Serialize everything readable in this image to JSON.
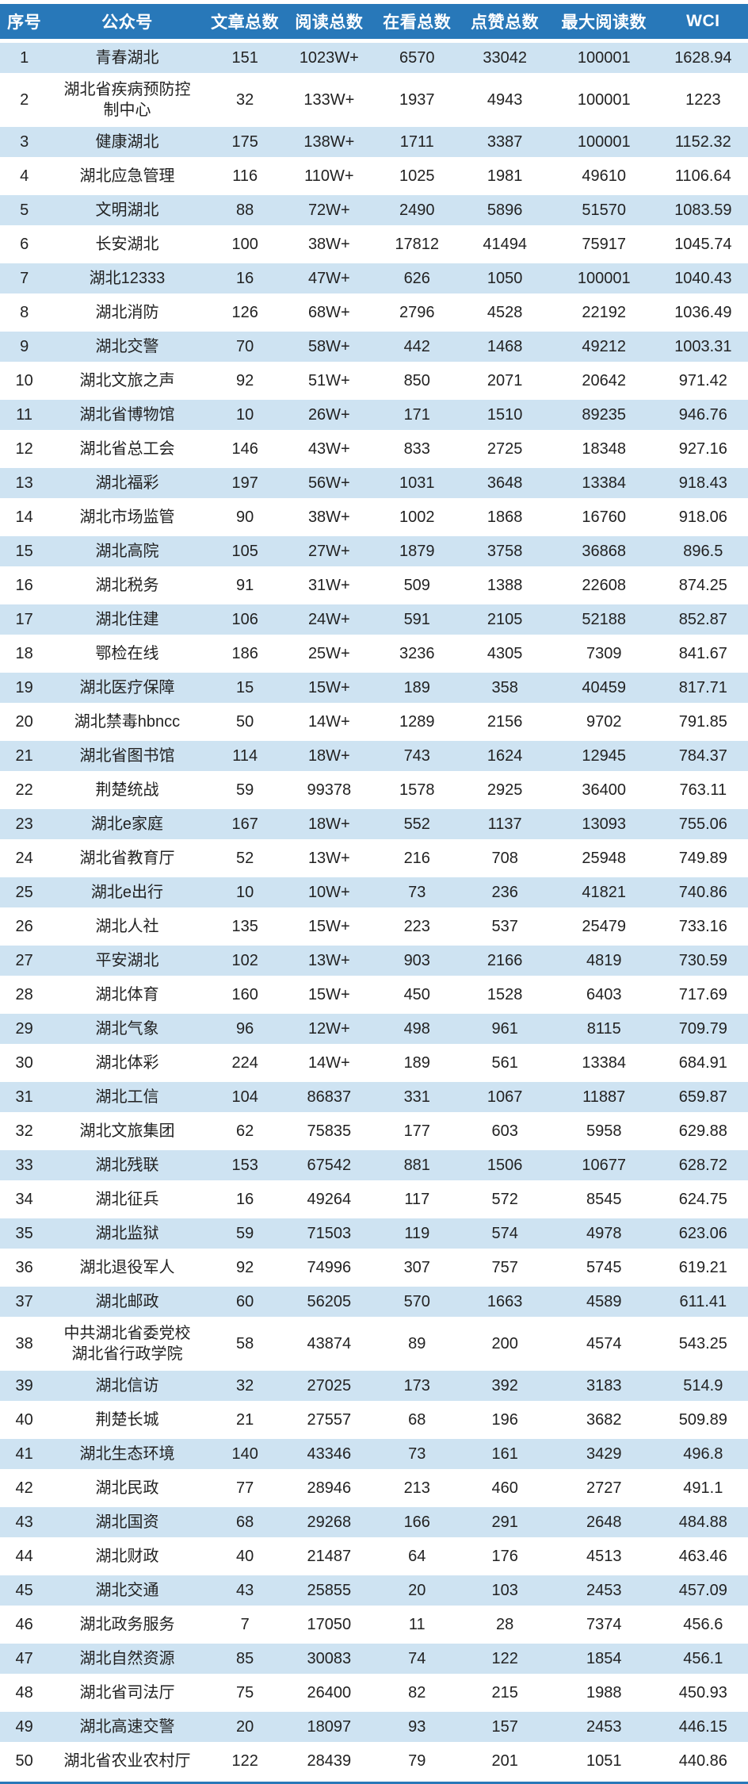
{
  "chart_data": {
    "type": "table",
    "columns": [
      "序号",
      "公众号",
      "文章总数",
      "阅读总数",
      "在看总数",
      "点赞总数",
      "最大阅读数",
      "WCI"
    ],
    "rows": [
      [
        "1",
        "青春湖北",
        "151",
        "1023W+",
        "6570",
        "33042",
        "100001",
        "1628.94"
      ],
      [
        "2",
        "湖北省疾病预防控\n制中心",
        "32",
        "133W+",
        "1937",
        "4943",
        "100001",
        "1223"
      ],
      [
        "3",
        "健康湖北",
        "175",
        "138W+",
        "1711",
        "3387",
        "100001",
        "1152.32"
      ],
      [
        "4",
        "湖北应急管理",
        "116",
        "110W+",
        "1025",
        "1981",
        "49610",
        "1106.64"
      ],
      [
        "5",
        "文明湖北",
        "88",
        "72W+",
        "2490",
        "5896",
        "51570",
        "1083.59"
      ],
      [
        "6",
        "长安湖北",
        "100",
        "38W+",
        "17812",
        "41494",
        "75917",
        "1045.74"
      ],
      [
        "7",
        "湖北12333",
        "16",
        "47W+",
        "626",
        "1050",
        "100001",
        "1040.43"
      ],
      [
        "8",
        "湖北消防",
        "126",
        "68W+",
        "2796",
        "4528",
        "22192",
        "1036.49"
      ],
      [
        "9",
        "湖北交警",
        "70",
        "58W+",
        "442",
        "1468",
        "49212",
        "1003.31"
      ],
      [
        "10",
        "湖北文旅之声",
        "92",
        "51W+",
        "850",
        "2071",
        "20642",
        "971.42"
      ],
      [
        "11",
        "湖北省博物馆",
        "10",
        "26W+",
        "171",
        "1510",
        "89235",
        "946.76"
      ],
      [
        "12",
        "湖北省总工会",
        "146",
        "43W+",
        "833",
        "2725",
        "18348",
        "927.16"
      ],
      [
        "13",
        "湖北福彩",
        "197",
        "56W+",
        "1031",
        "3648",
        "13384",
        "918.43"
      ],
      [
        "14",
        "湖北市场监管",
        "90",
        "38W+",
        "1002",
        "1868",
        "16760",
        "918.06"
      ],
      [
        "15",
        "湖北高院",
        "105",
        "27W+",
        "1879",
        "3758",
        "36868",
        "896.5"
      ],
      [
        "16",
        "湖北税务",
        "91",
        "31W+",
        "509",
        "1388",
        "22608",
        "874.25"
      ],
      [
        "17",
        "湖北住建",
        "106",
        "24W+",
        "591",
        "2105",
        "52188",
        "852.87"
      ],
      [
        "18",
        "鄂检在线",
        "186",
        "25W+",
        "3236",
        "4305",
        "7309",
        "841.67"
      ],
      [
        "19",
        "湖北医疗保障",
        "15",
        "15W+",
        "189",
        "358",
        "40459",
        "817.71"
      ],
      [
        "20",
        "湖北禁毒hbncc",
        "50",
        "14W+",
        "1289",
        "2156",
        "9702",
        "791.85"
      ],
      [
        "21",
        "湖北省图书馆",
        "114",
        "18W+",
        "743",
        "1624",
        "12945",
        "784.37"
      ],
      [
        "22",
        "荆楚统战",
        "59",
        "99378",
        "1578",
        "2925",
        "36400",
        "763.11"
      ],
      [
        "23",
        "湖北e家庭",
        "167",
        "18W+",
        "552",
        "1137",
        "13093",
        "755.06"
      ],
      [
        "24",
        "湖北省教育厅",
        "52",
        "13W+",
        "216",
        "708",
        "25948",
        "749.89"
      ],
      [
        "25",
        "湖北e出行",
        "10",
        "10W+",
        "73",
        "236",
        "41821",
        "740.86"
      ],
      [
        "26",
        "湖北人社",
        "135",
        "15W+",
        "223",
        "537",
        "25479",
        "733.16"
      ],
      [
        "27",
        "平安湖北",
        "102",
        "13W+",
        "903",
        "2166",
        "4819",
        "730.59"
      ],
      [
        "28",
        "湖北体育",
        "160",
        "15W+",
        "450",
        "1528",
        "6403",
        "717.69"
      ],
      [
        "29",
        "湖北气象",
        "96",
        "12W+",
        "498",
        "961",
        "8115",
        "709.79"
      ],
      [
        "30",
        "湖北体彩",
        "224",
        "14W+",
        "189",
        "561",
        "13384",
        "684.91"
      ],
      [
        "31",
        "湖北工信",
        "104",
        "86837",
        "331",
        "1067",
        "11887",
        "659.87"
      ],
      [
        "32",
        "湖北文旅集团",
        "62",
        "75835",
        "177",
        "603",
        "5958",
        "629.88"
      ],
      [
        "33",
        "湖北残联",
        "153",
        "67542",
        "881",
        "1506",
        "10677",
        "628.72"
      ],
      [
        "34",
        "湖北征兵",
        "16",
        "49264",
        "117",
        "572",
        "8545",
        "624.75"
      ],
      [
        "35",
        "湖北监狱",
        "59",
        "71503",
        "119",
        "574",
        "4978",
        "623.06"
      ],
      [
        "36",
        "湖北退役军人",
        "92",
        "74996",
        "307",
        "757",
        "5745",
        "619.21"
      ],
      [
        "37",
        "湖北邮政",
        "60",
        "56205",
        "570",
        "1663",
        "4589",
        "611.41"
      ],
      [
        "38",
        "中共湖北省委党校\n湖北省行政学院",
        "58",
        "43874",
        "89",
        "200",
        "4574",
        "543.25"
      ],
      [
        "39",
        "湖北信访",
        "32",
        "27025",
        "173",
        "392",
        "3183",
        "514.9"
      ],
      [
        "40",
        "荆楚长城",
        "21",
        "27557",
        "68",
        "196",
        "3682",
        "509.89"
      ],
      [
        "41",
        "湖北生态环境",
        "140",
        "43346",
        "73",
        "161",
        "3429",
        "496.8"
      ],
      [
        "42",
        "湖北民政",
        "77",
        "28946",
        "213",
        "460",
        "2727",
        "491.1"
      ],
      [
        "43",
        "湖北国资",
        "68",
        "29268",
        "166",
        "291",
        "2648",
        "484.88"
      ],
      [
        "44",
        "湖北财政",
        "40",
        "21487",
        "64",
        "176",
        "4513",
        "463.46"
      ],
      [
        "45",
        "湖北交通",
        "43",
        "25855",
        "20",
        "103",
        "2453",
        "457.09"
      ],
      [
        "46",
        "湖北政务服务",
        "7",
        "17050",
        "11",
        "28",
        "7374",
        "456.6"
      ],
      [
        "47",
        "湖北自然资源",
        "85",
        "30083",
        "74",
        "122",
        "1854",
        "456.1"
      ],
      [
        "48",
        "湖北省司法厅",
        "75",
        "26400",
        "82",
        "215",
        "1988",
        "450.93"
      ],
      [
        "49",
        "湖北高速交警",
        "20",
        "18097",
        "93",
        "157",
        "2453",
        "446.15"
      ],
      [
        "50",
        "湖北省农业农村厅",
        "122",
        "28439",
        "79",
        "201",
        "1051",
        "440.86"
      ]
    ]
  },
  "colors": {
    "header_bg": "#2878B9",
    "header_text": "#FFFFFF",
    "alt_row_bg": "#CEE3F2",
    "body_text": "#222222",
    "bottom_rule": "#2878B9"
  }
}
